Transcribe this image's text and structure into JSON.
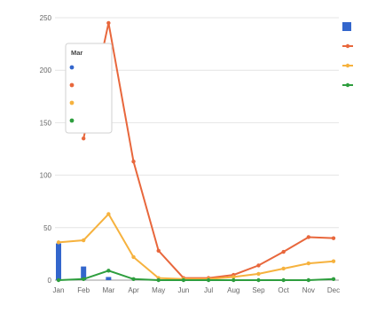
{
  "chart_data": {
    "type": "line",
    "xlabel": "",
    "ylabel": "",
    "categories": [
      "Jan",
      "Feb",
      "Mar",
      "Apr",
      "May",
      "Jun",
      "Jul",
      "Aug",
      "Sep",
      "Oct",
      "Nov",
      "Dec"
    ],
    "ylim": [
      0,
      250
    ],
    "yticks": [
      0,
      50,
      100,
      150,
      200,
      250
    ],
    "grid": true,
    "legend_position": "right",
    "series": [
      {
        "name": "",
        "kind": "bar",
        "color": "#3366cc",
        "values": [
          35,
          13,
          3,
          0,
          0,
          0,
          0,
          0,
          0,
          0,
          0,
          0
        ]
      },
      {
        "name": "",
        "kind": "line",
        "color": "#e8673c",
        "values": [
          null,
          135,
          245,
          113,
          28,
          2,
          2,
          5,
          14,
          27,
          41,
          40
        ]
      },
      {
        "name": "",
        "kind": "line",
        "color": "#f6b23e",
        "values": [
          36,
          38,
          63,
          22,
          2,
          1,
          1,
          3,
          6,
          11,
          16,
          18
        ]
      },
      {
        "name": "",
        "kind": "line",
        "color": "#2e9e3e",
        "values": [
          0,
          1,
          9,
          1,
          0,
          0,
          0,
          0,
          0,
          0,
          0,
          1
        ]
      }
    ],
    "tooltip": {
      "title": "Mar",
      "entries": [
        {
          "label": "",
          "value": "",
          "color": "#3366cc"
        },
        {
          "label": "",
          "value": "",
          "color": "#e8673c"
        },
        {
          "label": "",
          "value": "",
          "color": "#f6b23e"
        },
        {
          "label": "",
          "value": "",
          "color": "#2e9e3e"
        }
      ]
    }
  }
}
